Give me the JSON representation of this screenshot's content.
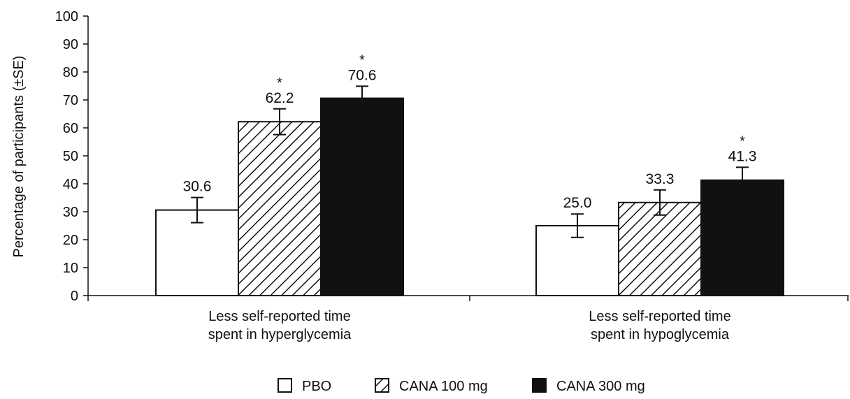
{
  "chart_data": {
    "type": "bar",
    "title": "",
    "xlabel": "",
    "ylabel": "Percentage of participants (±SE)",
    "ylim": [
      0,
      100
    ],
    "yticks": [
      0,
      10,
      20,
      30,
      40,
      50,
      60,
      70,
      80,
      90,
      100
    ],
    "grid": false,
    "legend_position": "bottom-center",
    "categories": [
      [
        "Less self-reported time",
        "spent in hyperglycemia"
      ],
      [
        "Less self-reported time",
        "spent in hypoglycemia"
      ]
    ],
    "series": [
      {
        "name": "PBO",
        "fill": "white",
        "values": [
          30.6,
          25.0
        ],
        "labels": [
          "30.6",
          "25.0"
        ],
        "se": [
          4.5,
          4.2
        ],
        "significant": [
          false,
          false
        ]
      },
      {
        "name": "CANA 100 mg",
        "fill": "hatched",
        "values": [
          62.2,
          33.3
        ],
        "labels": [
          "62.2",
          "33.3"
        ],
        "se": [
          4.6,
          4.5
        ],
        "significant": [
          true,
          false
        ]
      },
      {
        "name": "CANA 300 mg",
        "fill": "black",
        "values": [
          70.6,
          41.3
        ],
        "labels": [
          "70.6",
          "41.3"
        ],
        "se": [
          4.3,
          4.6
        ],
        "significant": [
          true,
          true
        ]
      }
    ],
    "significance_marker": "*"
  },
  "colors": {
    "axis": "#111111",
    "bar_outline": "#111111",
    "black_fill": "#111111",
    "white_fill": "#ffffff"
  }
}
